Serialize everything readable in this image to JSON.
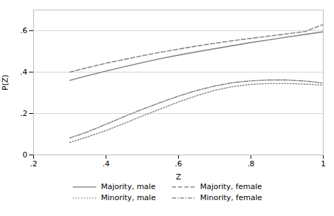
{
  "chart_data": {
    "type": "line",
    "xlabel": "Z",
    "ylabel": "P(Z)",
    "x": [
      0.3,
      0.35,
      0.4,
      0.45,
      0.5,
      0.55,
      0.6,
      0.65,
      0.7,
      0.75,
      0.8,
      0.85,
      0.9,
      0.95,
      1.0
    ],
    "series": [
      {
        "name": "Majority, male",
        "color": "#888888",
        "line_style": "solid",
        "values": [
          0.36,
          0.383,
          0.405,
          0.426,
          0.446,
          0.465,
          0.482,
          0.498,
          0.513,
          0.528,
          0.543,
          0.556,
          0.569,
          0.582,
          0.595
        ]
      },
      {
        "name": "Majority, female",
        "color": "#888888",
        "line_style": "dashed",
        "values": [
          0.4,
          0.422,
          0.443,
          0.461,
          0.479,
          0.496,
          0.511,
          0.526,
          0.539,
          0.552,
          0.563,
          0.574,
          0.585,
          0.596,
          0.63
        ]
      },
      {
        "name": "Minority, male",
        "color": "#888888",
        "line_style": "dotted",
        "values": [
          0.06,
          0.088,
          0.118,
          0.152,
          0.188,
          0.222,
          0.256,
          0.286,
          0.312,
          0.33,
          0.341,
          0.345,
          0.345,
          0.342,
          0.337
        ]
      },
      {
        "name": "Minority, female",
        "color": "#888888",
        "line_style": "dashdot",
        "values": [
          0.082,
          0.112,
          0.148,
          0.185,
          0.22,
          0.253,
          0.284,
          0.311,
          0.333,
          0.349,
          0.358,
          0.362,
          0.362,
          0.357,
          0.347
        ]
      }
    ],
    "xlim": [
      0.2,
      1.0
    ],
    "ylim": [
      0.0,
      0.7
    ],
    "xticks": [
      {
        "value": 0.2,
        "label": ".2"
      },
      {
        "value": 0.4,
        "label": ".4"
      },
      {
        "value": 0.6,
        "label": ".6"
      },
      {
        "value": 0.8,
        "label": ".8"
      },
      1
    ],
    "yticks": [
      0,
      {
        "value": 0.2,
        "label": ".2"
      },
      {
        "value": 0.4,
        "label": ".4"
      },
      {
        "value": 0.6,
        "label": ".6"
      }
    ],
    "grid": "y",
    "legend": "bottom"
  }
}
